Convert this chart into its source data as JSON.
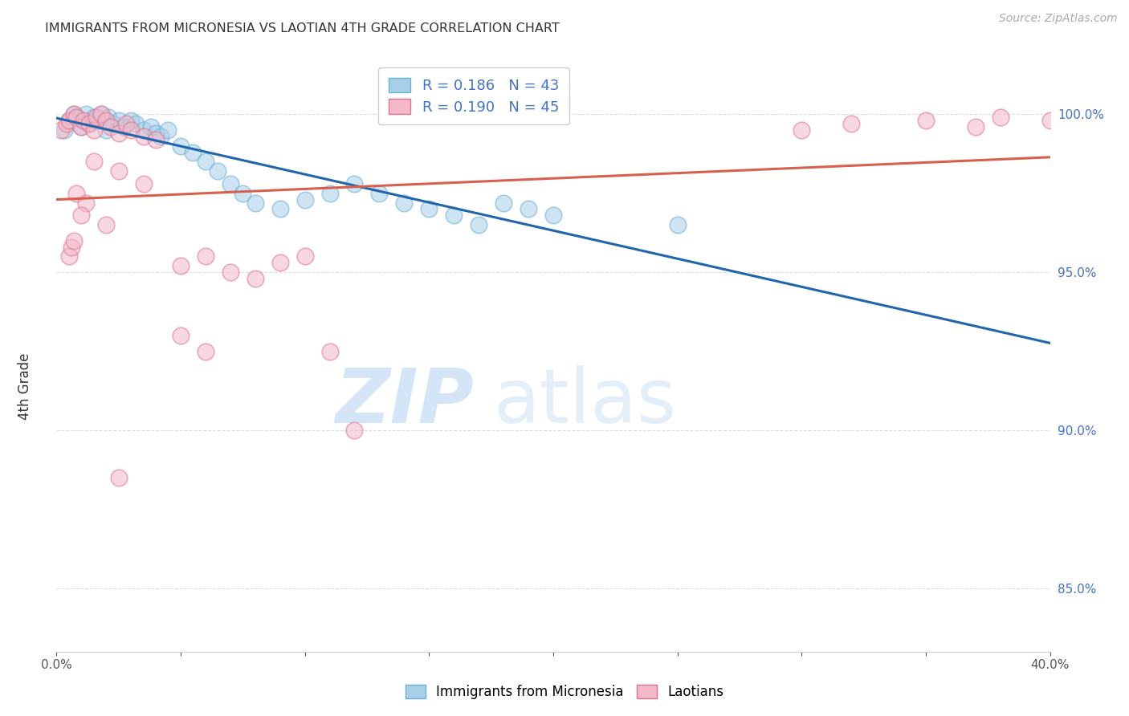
{
  "title": "IMMIGRANTS FROM MICRONESIA VS LAOTIAN 4TH GRADE CORRELATION CHART",
  "source": "Source: ZipAtlas.com",
  "ylabel": "4th Grade",
  "r_blue": 0.186,
  "n_blue": 43,
  "r_pink": 0.19,
  "n_pink": 45,
  "legend_label_blue": "Immigrants from Micronesia",
  "legend_label_pink": "Laotians",
  "blue_color": "#a8cfe8",
  "pink_color": "#f4b8c8",
  "blue_edge_color": "#6baed6",
  "pink_edge_color": "#e07090",
  "blue_line_color": "#2166ac",
  "pink_line_color": "#d6604d",
  "blue_x": [
    0.3,
    0.5,
    0.7,
    0.8,
    1.0,
    1.1,
    1.2,
    1.3,
    1.5,
    1.6,
    1.8,
    2.0,
    2.1,
    2.3,
    2.5,
    2.7,
    3.0,
    3.2,
    3.5,
    3.8,
    4.0,
    4.2,
    4.5,
    5.0,
    5.5,
    6.0,
    6.5,
    7.0,
    7.5,
    8.0,
    9.0,
    10.0,
    11.0,
    12.0,
    13.0,
    14.0,
    15.0,
    16.0,
    17.0,
    18.0,
    19.0,
    20.0,
    25.0
  ],
  "blue_y": [
    99.5,
    99.8,
    100.0,
    99.9,
    99.6,
    99.8,
    100.0,
    99.7,
    99.9,
    99.8,
    100.0,
    99.5,
    99.9,
    99.7,
    99.8,
    99.6,
    99.8,
    99.7,
    99.5,
    99.6,
    99.4,
    99.3,
    99.5,
    99.0,
    98.8,
    98.5,
    98.2,
    97.8,
    97.5,
    97.2,
    97.0,
    97.3,
    97.5,
    97.8,
    97.5,
    97.2,
    97.0,
    96.8,
    96.5,
    97.2,
    97.0,
    96.8,
    96.5
  ],
  "pink_x": [
    0.2,
    0.4,
    0.5,
    0.7,
    0.8,
    1.0,
    1.1,
    1.3,
    1.5,
    1.6,
    1.8,
    2.0,
    2.2,
    2.5,
    2.8,
    3.0,
    3.5,
    4.0,
    1.5,
    2.5,
    3.5,
    0.8,
    1.2,
    5.0,
    6.0,
    1.0,
    2.0,
    7.0,
    8.0,
    9.0,
    10.0,
    11.0,
    12.0,
    30.0,
    32.0,
    35.0,
    37.0,
    38.0,
    40.0,
    5.0,
    6.0,
    0.5,
    0.6,
    0.7,
    2.5
  ],
  "pink_y": [
    99.5,
    99.7,
    99.8,
    100.0,
    99.9,
    99.6,
    99.8,
    99.7,
    99.5,
    99.9,
    100.0,
    99.8,
    99.6,
    99.4,
    99.7,
    99.5,
    99.3,
    99.2,
    98.5,
    98.2,
    97.8,
    97.5,
    97.2,
    95.2,
    95.5,
    96.8,
    96.5,
    95.0,
    94.8,
    95.3,
    95.5,
    92.5,
    90.0,
    99.5,
    99.7,
    99.8,
    99.6,
    99.9,
    99.8,
    93.0,
    92.5,
    95.5,
    95.8,
    96.0,
    88.5
  ],
  "xlim": [
    0,
    40
  ],
  "ylim": [
    83,
    101.8
  ],
  "yticks": [
    85,
    90,
    95,
    100
  ],
  "ytick_labels": [
    "85.0%",
    "90.0%",
    "95.0%",
    "100.0%"
  ],
  "xtick_positions": [
    0,
    5,
    10,
    15,
    20,
    25,
    30,
    35,
    40
  ],
  "xtick_labels": [
    "0.0%",
    "",
    "",
    "",
    "",
    "",
    "",
    "",
    "40.0%"
  ]
}
